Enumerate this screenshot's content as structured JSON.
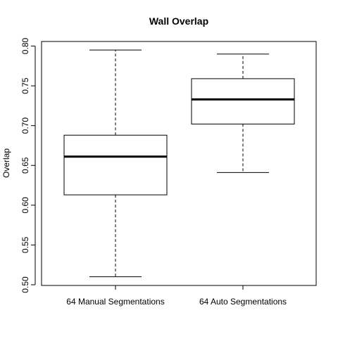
{
  "chart_data": {
    "type": "boxplot",
    "title": "Wall Overlap",
    "xlabel": "",
    "ylabel": "Overlap",
    "ylim": [
      0.5,
      0.8
    ],
    "yticks": [
      "0.50",
      "0.55",
      "0.60",
      "0.65",
      "0.70",
      "0.75",
      "0.80"
    ],
    "grid": false,
    "legend": "none",
    "categories": [
      "64 Manual Segmentations",
      "64 Auto Segmentations"
    ],
    "boxes": [
      {
        "whisker_low": 0.51,
        "q1": 0.613,
        "median": 0.661,
        "q3": 0.688,
        "whisker_high": 0.795
      },
      {
        "whisker_low": 0.641,
        "q1": 0.702,
        "median": 0.733,
        "q3": 0.759,
        "whisker_high": 0.79
      }
    ]
  }
}
